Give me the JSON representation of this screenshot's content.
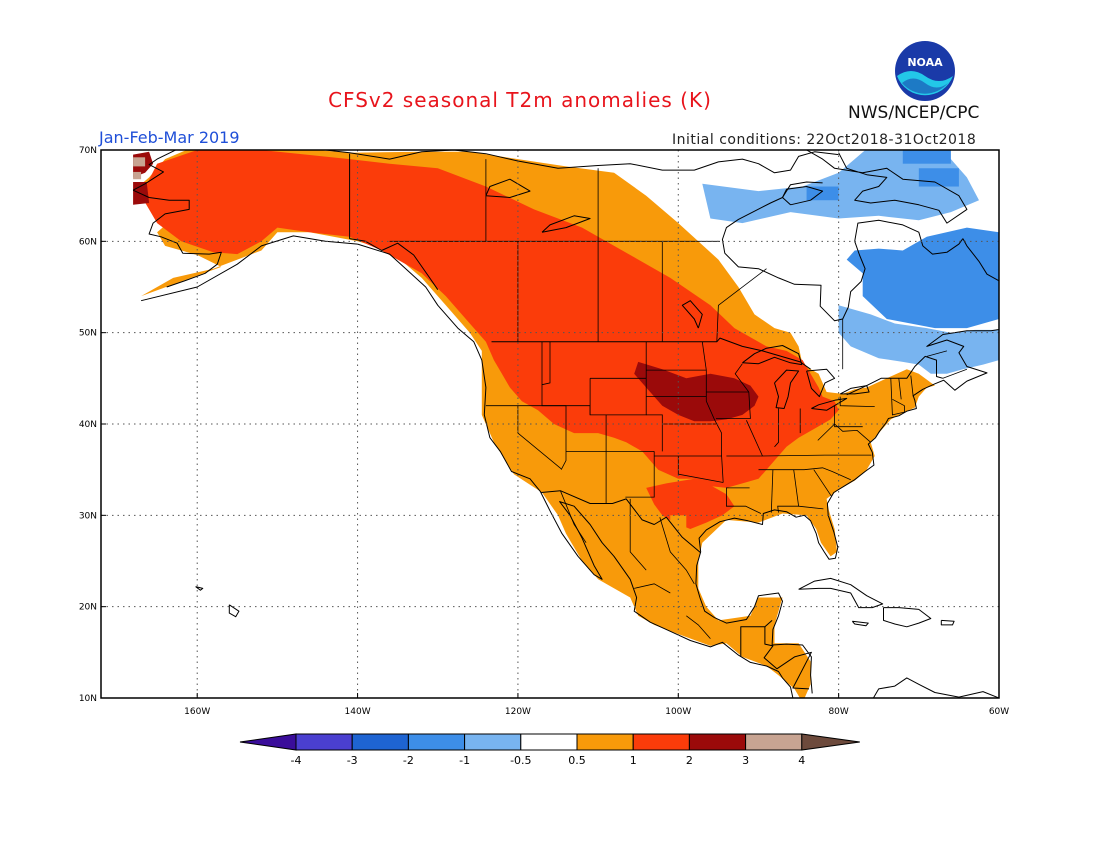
{
  "header": {
    "title": "CFSv2 seasonal T2m anomalies (K)",
    "period": "Jan-Feb-Mar 2019",
    "initial_conditions": "Initial conditions: 22Oct2018-31Oct2018",
    "agency": "NWS/NCEP/CPC",
    "logo_text": "NOAA"
  },
  "map": {
    "lon_range": [
      -172,
      -60
    ],
    "lat_range": [
      10,
      70
    ],
    "lon_ticks": [
      "160W",
      "140W",
      "120W",
      "100W",
      "80W",
      "60W"
    ],
    "lat_ticks": [
      "70N",
      "60N",
      "50N",
      "40N",
      "30N",
      "20N",
      "10N"
    ]
  },
  "legend": {
    "labels": [
      "-4",
      "-3",
      "-2",
      "-1",
      "-0.5",
      "0.5",
      "1",
      "2",
      "3",
      "4"
    ],
    "colors": [
      "#3a0d9a",
      "#4a3fd0",
      "#1e64d2",
      "#3d8ee8",
      "#78b4f0",
      "#ffffff",
      "#f89a0a",
      "#fb3c0a",
      "#9b0a0a",
      "#c8a492",
      "#6d4a3c"
    ]
  },
  "anomaly_colors": {
    "neg_light": "#78b4f0",
    "neg_med": "#3d8ee8",
    "pos_light": "#f89a0a",
    "pos_med": "#fb3c0a",
    "pos_strong": "#9b0a0a",
    "pos_extreme": "#c8a492"
  }
}
